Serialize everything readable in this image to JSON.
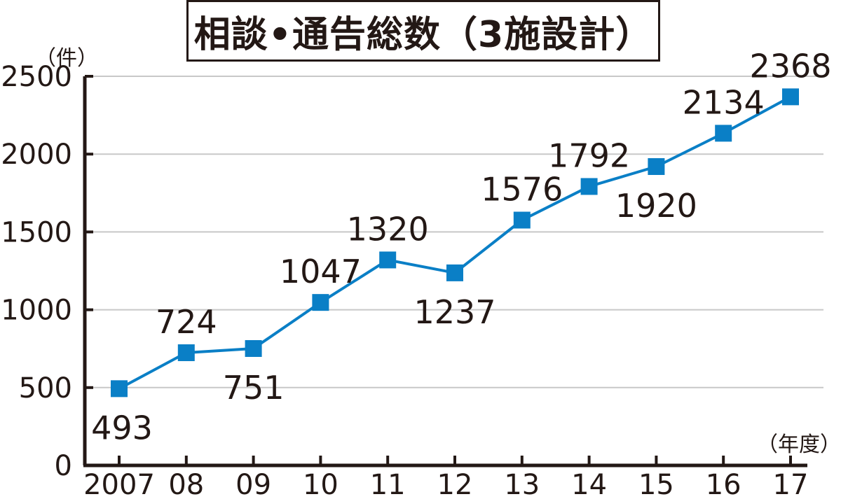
{
  "chart_data": {
    "type": "line",
    "title": "相談•通告総数（3施設計）",
    "y_unit": "（件）",
    "x_unit": "（年度）",
    "categories": [
      "2007",
      "08",
      "09",
      "10",
      "11",
      "12",
      "13",
      "14",
      "15",
      "16",
      "17"
    ],
    "series": [
      {
        "values": [
          493,
          724,
          751,
          1047,
          1320,
          1237,
          1576,
          1792,
          1920,
          2134,
          2368
        ]
      }
    ],
    "ylim": [
      0,
      2500
    ],
    "yticks": [
      0,
      500,
      1000,
      1500,
      2000,
      2500
    ],
    "grid": true,
    "data_label_position": [
      "below",
      "above",
      "below",
      "above",
      "above",
      "below",
      "above",
      "above",
      "below",
      "above",
      "above"
    ],
    "colors": {
      "line": "#0a7fc6",
      "marker": "#0a7fc6",
      "grid": "#c8c8c8",
      "axis": "#231815"
    }
  }
}
